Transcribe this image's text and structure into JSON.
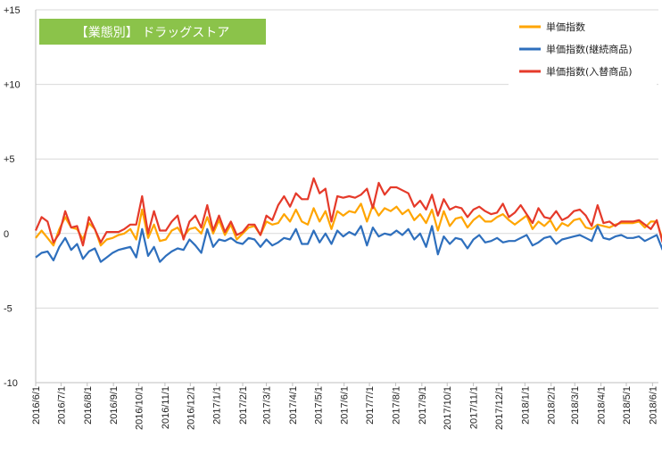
{
  "chart_data": {
    "type": "line",
    "title": "【業態別】 ドラッグストア",
    "title_bg": "#8bc34a",
    "ylim": [
      -10,
      15
    ],
    "y_ticks": [
      {
        "value": 15,
        "label": "+15"
      },
      {
        "value": 10,
        "label": "+10"
      },
      {
        "value": 5,
        "label": "+5"
      },
      {
        "value": 0,
        "label": "0"
      },
      {
        "value": -5,
        "label": "-5"
      },
      {
        "value": -10,
        "label": "-10"
      }
    ],
    "x_tick_labels": [
      "2016/6/1",
      "2016/7/1",
      "2016/8/1",
      "2016/9/1",
      "2016/10/1",
      "2016/11/1",
      "2016/12/1",
      "2017/1/1",
      "2017/2/1",
      "2017/3/1",
      "2017/4/1",
      "2017/5/1",
      "2017/6/1",
      "2017/7/1",
      "2017/8/1",
      "2017/9/1",
      "2017/10/1",
      "2017/11/1",
      "2017/12/1",
      "2018/1/1",
      "2018/2/1",
      "2018/3/1",
      "2018/4/1",
      "2018/5/1",
      "2018/6/1"
    ],
    "x_range": [
      "2016/6/1",
      "2018/6/8"
    ],
    "x_step_days": 7,
    "grid": "horizontal",
    "legend_placement": "top-right",
    "series": [
      {
        "name": "単価指数",
        "color": "#ffa500",
        "values": [
          -0.3,
          0.2,
          -0.3,
          -0.8,
          0.3,
          1.1,
          0.4,
          0.3,
          -0.4,
          0.7,
          0.3,
          -0.8,
          -0.4,
          -0.3,
          -0.1,
          0.0,
          0.3,
          -0.4,
          1.6,
          -0.3,
          0.6,
          -0.5,
          -0.4,
          0.2,
          0.4,
          -0.2,
          0.3,
          0.4,
          0.0,
          1.1,
          0.0,
          0.9,
          -0.1,
          0.6,
          -0.4,
          0.0,
          0.4,
          0.5,
          -0.1,
          0.8,
          0.6,
          0.7,
          1.3,
          0.8,
          1.6,
          0.8,
          0.6,
          1.7,
          0.8,
          1.5,
          0.3,
          1.5,
          1.2,
          1.5,
          1.4,
          2.0,
          0.8,
          1.9,
          1.2,
          1.7,
          1.5,
          1.8,
          1.3,
          1.6,
          0.9,
          1.3,
          0.7,
          1.6,
          0.2,
          1.5,
          0.5,
          1.0,
          1.1,
          0.4,
          0.9,
          1.2,
          0.8,
          0.8,
          1.1,
          1.3,
          0.9,
          0.6,
          0.9,
          1.2,
          0.3,
          0.8,
          0.5,
          0.9,
          0.2,
          0.7,
          0.5,
          0.9,
          1.0,
          0.4,
          0.3,
          0.6,
          0.5,
          0.4,
          0.6,
          0.7,
          0.7,
          0.7,
          0.8,
          0.4,
          0.8,
          0.8,
          -0.4
        ]
      },
      {
        "name": "単価指数(継続商品)",
        "color": "#2e6fbd",
        "values": [
          -1.6,
          -1.3,
          -1.2,
          -1.8,
          -0.9,
          -0.3,
          -1.1,
          -0.7,
          -1.7,
          -1.2,
          -1.0,
          -1.9,
          -1.6,
          -1.3,
          -1.1,
          -1.0,
          -0.9,
          -1.6,
          0.3,
          -1.5,
          -0.9,
          -1.9,
          -1.5,
          -1.2,
          -1.0,
          -1.1,
          -0.4,
          -0.8,
          -1.3,
          0.3,
          -0.9,
          -0.4,
          -0.5,
          -0.3,
          -0.6,
          -0.7,
          -0.3,
          -0.4,
          -0.9,
          -0.4,
          -0.8,
          -0.6,
          -0.3,
          -0.4,
          0.3,
          -0.7,
          -0.7,
          0.2,
          -0.6,
          0.0,
          -0.7,
          0.2,
          -0.2,
          0.1,
          -0.1,
          0.5,
          -0.8,
          0.4,
          -0.2,
          0.0,
          -0.1,
          0.2,
          -0.1,
          0.3,
          -0.4,
          0.0,
          -0.9,
          0.5,
          -1.4,
          -0.2,
          -0.7,
          -0.3,
          -0.4,
          -1.0,
          -0.4,
          -0.1,
          -0.6,
          -0.5,
          -0.3,
          -0.6,
          -0.5,
          -0.5,
          -0.3,
          -0.1,
          -0.8,
          -0.6,
          -0.3,
          -0.2,
          -0.7,
          -0.4,
          -0.3,
          -0.2,
          -0.1,
          -0.3,
          -0.5,
          0.5,
          -0.3,
          -0.4,
          -0.2,
          -0.1,
          -0.3,
          -0.3,
          -0.2,
          -0.5,
          -0.3,
          -0.1,
          -1.1
        ]
      },
      {
        "name": "単価指数(入替商品)",
        "color": "#e53a2a",
        "values": [
          0.2,
          1.1,
          0.8,
          -0.6,
          0.0,
          1.5,
          0.4,
          0.5,
          -0.8,
          1.1,
          0.3,
          -0.6,
          0.1,
          0.1,
          0.1,
          0.3,
          0.6,
          0.6,
          2.5,
          0.0,
          1.5,
          0.2,
          0.2,
          0.8,
          1.2,
          -0.4,
          0.8,
          1.2,
          0.4,
          1.9,
          0.2,
          1.2,
          0.1,
          0.8,
          -0.1,
          0.1,
          0.6,
          0.6,
          -0.1,
          1.2,
          0.9,
          1.9,
          2.5,
          1.8,
          2.7,
          2.3,
          2.3,
          3.7,
          2.7,
          3.0,
          0.8,
          2.5,
          2.4,
          2.5,
          2.4,
          2.6,
          3.0,
          1.7,
          3.4,
          2.6,
          3.1,
          3.1,
          2.9,
          2.7,
          1.8,
          2.2,
          1.6,
          2.6,
          1.2,
          2.3,
          1.6,
          1.8,
          1.7,
          1.1,
          1.6,
          1.8,
          1.5,
          1.3,
          1.4,
          2.0,
          1.1,
          1.4,
          1.9,
          1.3,
          0.7,
          1.7,
          1.1,
          1.0,
          1.5,
          0.9,
          1.1,
          1.5,
          1.6,
          1.2,
          0.5,
          1.9,
          0.7,
          0.8,
          0.5,
          0.8,
          0.8,
          0.8,
          0.9,
          0.6,
          0.3,
          0.9,
          -0.6
        ]
      }
    ]
  }
}
